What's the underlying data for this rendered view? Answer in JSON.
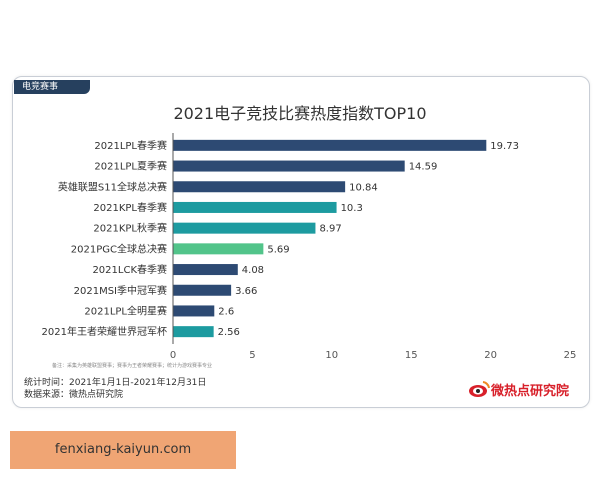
{
  "tag": "电竞赛事",
  "title": "2021电子竞技比赛热度指数TOP10",
  "notes": "备注：采集为英雄联盟赛事；赛事为王者荣耀赛事；统计为游戏赛事专业",
  "footer": {
    "period": "统计时间：2021年1月1日-2021年12月31日",
    "source": "数据来源：微热点研究院"
  },
  "logo": "微热点研究院",
  "watermark": "fenxiang-kaiyun.com",
  "colors": {
    "navy": "#2d4a73",
    "teal": "#1d9ba0",
    "green": "#52c48a"
  },
  "chart_data": {
    "type": "bar",
    "orientation": "horizontal",
    "title": "2021电子竞技比赛热度指数TOP10",
    "categories": [
      "2021LPL春季赛",
      "2021LPL夏季赛",
      "英雄联盟S11全球总决赛",
      "2021KPL春季赛",
      "2021KPL秋季赛",
      "2021PGC全球总决赛",
      "2021LCK春季赛",
      "2021MSI季中冠军赛",
      "2021LPL全明星赛",
      "2021年王者荣耀世界冠军杯"
    ],
    "values": [
      19.73,
      14.59,
      10.84,
      10.3,
      8.97,
      5.69,
      4.08,
      3.66,
      2.6,
      2.56
    ],
    "value_labels": [
      "19.73",
      "14.59",
      "10.84",
      "10.3",
      "8.97",
      "5.69",
      "4.08",
      "3.66",
      "2.6",
      "2.56"
    ],
    "bar_colors": [
      "#2d4a73",
      "#2d4a73",
      "#2d4a73",
      "#1d9ba0",
      "#1d9ba0",
      "#52c48a",
      "#2d4a73",
      "#2d4a73",
      "#2d4a73",
      "#1d9ba0"
    ],
    "xticks": [
      "0",
      "5",
      "10",
      "15",
      "20",
      "25"
    ],
    "xlim": [
      0,
      25
    ],
    "grid": false
  }
}
